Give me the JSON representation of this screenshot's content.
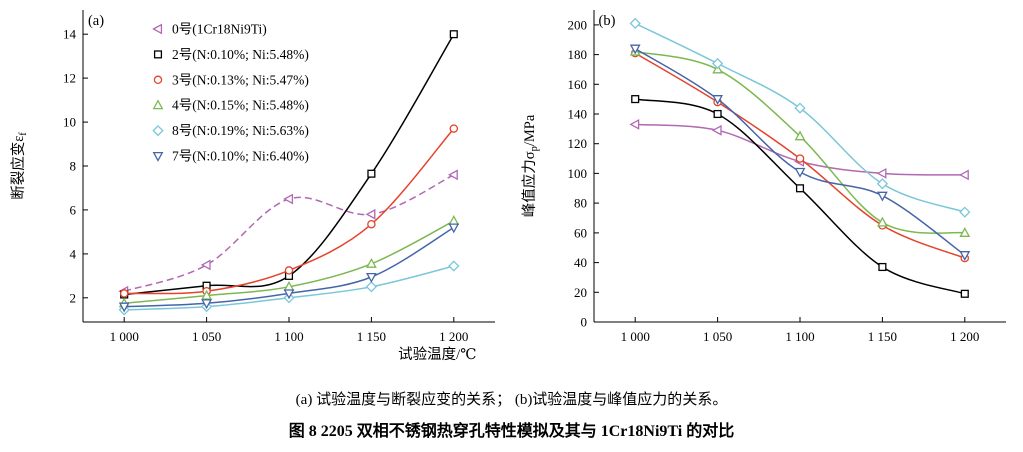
{
  "figure": {
    "caption_sub": "(a) 试验温度与断裂应变的关系； (b)试验温度与峰值应力的关系。",
    "caption_main": "图 8  2205 双相不锈钢热穿孔特性模拟及其与 1Cr18Ni9Ti 的对比"
  },
  "chart_data": [
    {
      "type": "line",
      "panel_label": "(a)",
      "xlabel": "试验温度/℃",
      "ylabel": "断裂应变εf",
      "ylabel_parts": [
        {
          "t": "断裂应变ε"
        },
        {
          "t": "f",
          "sub": true
        }
      ],
      "x": [
        1000,
        1050,
        1100,
        1150,
        1200
      ],
      "xtick_labels": [
        "1 000",
        "1 050",
        "1 100",
        "1 150",
        "1 200"
      ],
      "xlim": [
        975,
        1225
      ],
      "ylim": [
        0.9,
        15.1
      ],
      "yticks": [
        2,
        4,
        6,
        8,
        10,
        12,
        14
      ],
      "grid": false,
      "legend_visible": true,
      "legend_position": "top-left-inside",
      "series": [
        {
          "name": "0号(1Cr18Ni9Ti)",
          "marker": "triangle-left",
          "color": "#b268b2",
          "line_style": "dashed",
          "values": [
            2.3,
            3.5,
            6.5,
            5.8,
            7.6
          ]
        },
        {
          "name": "2号(N:0.10%; Ni:5.48%)",
          "marker": "square",
          "color": "#000000",
          "line_style": "solid",
          "values": [
            2.15,
            2.55,
            3.0,
            7.65,
            14.0
          ]
        },
        {
          "name": "3号(N:0.13%; Ni:5.47%)",
          "marker": "circle",
          "color": "#e5432b",
          "line_style": "solid",
          "values": [
            2.2,
            2.3,
            3.25,
            5.35,
            9.7
          ]
        },
        {
          "name": "4号(N:0.15%; Ni:5.48%)",
          "marker": "triangle-up",
          "color": "#7cb850",
          "line_style": "solid",
          "values": [
            1.75,
            2.1,
            2.5,
            3.55,
            5.5
          ]
        },
        {
          "name": "8号(N:0.19%; Ni:5.63%)",
          "marker": "diamond",
          "color": "#79c7d9",
          "line_style": "solid",
          "values": [
            1.45,
            1.6,
            2.0,
            2.5,
            3.45
          ]
        },
        {
          "name": "7号(N:0.10%; Ni:6.40%)",
          "marker": "triangle-down",
          "color": "#4565a9",
          "line_style": "solid",
          "values": [
            1.6,
            1.75,
            2.2,
            2.95,
            5.2
          ]
        }
      ]
    },
    {
      "type": "line",
      "panel_label": "(b)",
      "xlabel": "",
      "ylabel": "峰值应力σp/MPa",
      "ylabel_parts": [
        {
          "t": "峰值应力σ"
        },
        {
          "t": "p",
          "sub": true
        },
        {
          "t": "/MPa"
        }
      ],
      "x": [
        1000,
        1050,
        1100,
        1150,
        1200
      ],
      "xtick_labels": [
        "1 000",
        "1 050",
        "1 100",
        "1 150",
        "1 200"
      ],
      "xlim": [
        975,
        1225
      ],
      "ylim": [
        0,
        210
      ],
      "yticks": [
        0,
        20,
        40,
        60,
        80,
        100,
        120,
        140,
        160,
        180,
        200
      ],
      "grid": false,
      "legend_visible": false,
      "series": [
        {
          "name": "0号(1Cr18Ni9Ti)",
          "marker": "triangle-left",
          "color": "#b268b2",
          "line_style": "solid",
          "values": [
            133,
            129,
            108,
            100,
            99
          ]
        },
        {
          "name": "2号(N:0.10%; Ni:5.48%)",
          "marker": "square",
          "color": "#000000",
          "line_style": "solid",
          "values": [
            150,
            140,
            90,
            37,
            19
          ]
        },
        {
          "name": "3号(N:0.13%; Ni:5.47%)",
          "marker": "circle",
          "color": "#e5432b",
          "line_style": "solid",
          "values": [
            181,
            148,
            110,
            65,
            43
          ]
        },
        {
          "name": "4号(N:0.15%; Ni:5.48%)",
          "marker": "triangle-up",
          "color": "#7cb850",
          "line_style": "solid",
          "values": [
            182,
            170,
            125,
            67,
            60
          ]
        },
        {
          "name": "8号(N:0.19%; Ni:5.63%)",
          "marker": "diamond",
          "color": "#79c7d9",
          "line_style": "solid",
          "values": [
            201,
            174,
            144,
            93,
            74
          ]
        },
        {
          "name": "7号(N:0.10%; Ni:6.40%)",
          "marker": "triangle-down",
          "color": "#4565a9",
          "line_style": "solid",
          "values": [
            184,
            150,
            101,
            85,
            45
          ]
        }
      ]
    }
  ]
}
